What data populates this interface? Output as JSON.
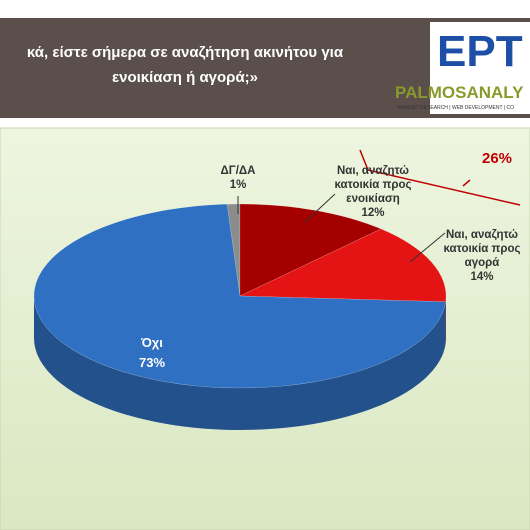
{
  "header": {
    "title": "κά, είστε σήμερα σε αναζήτηση ακινήτου για ενοικίαση ή αγορά;»",
    "logo_main": "ΕΡΤ",
    "logo_brand": "PALMOSANALY",
    "logo_tagline": "MARKET RESEARCH | WEB DEVELOPMENT | CO"
  },
  "chart_data": {
    "type": "pie",
    "categories": [
      "ΔΓ/ΔΑ",
      "Ναι, αναζητώ κατοικία προς ενοικίαση",
      "Ναι, αναζητώ κατοικία προς αγορά",
      "Όχι"
    ],
    "values": [
      1,
      12,
      14,
      73
    ],
    "value_labels": [
      "1%",
      "12%",
      "14%",
      "73%"
    ],
    "colors": [
      "#8c8c8c",
      "#a40000",
      "#e41414",
      "#2f70c2"
    ],
    "annotation": "26%"
  }
}
